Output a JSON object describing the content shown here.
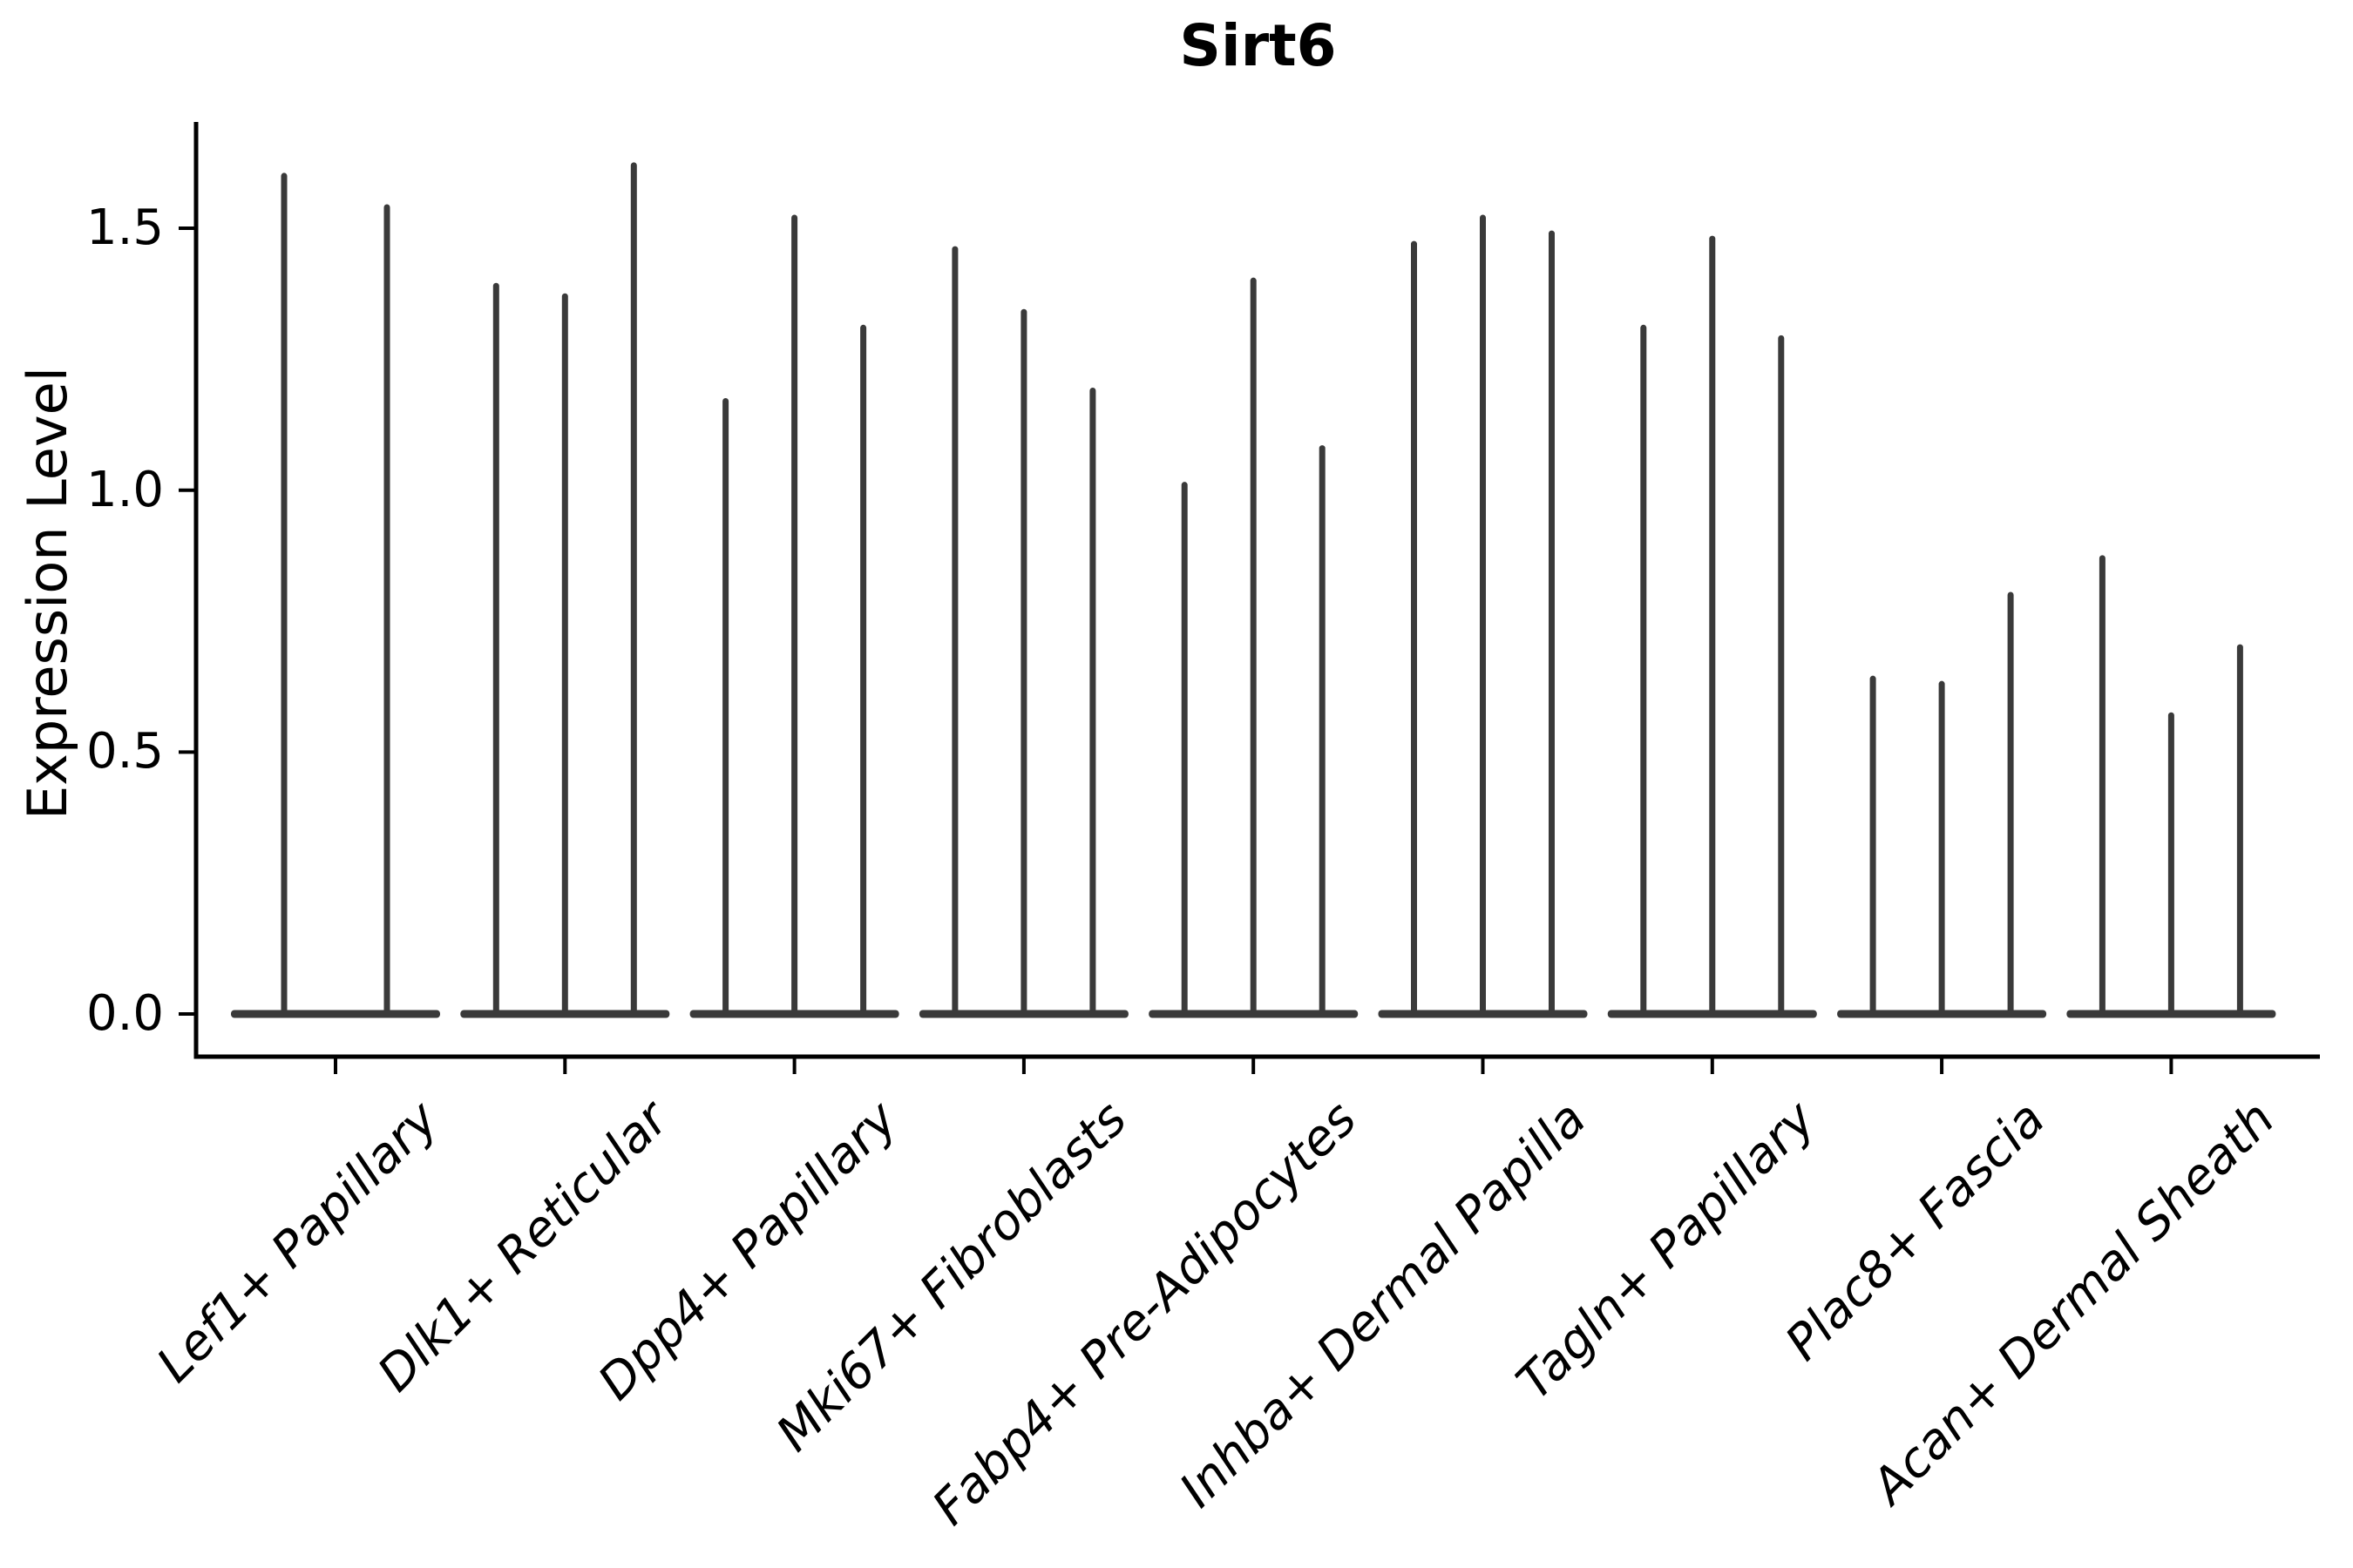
{
  "figure": {
    "title": "Sirt6",
    "y_axis_label": "Expression Level"
  },
  "y_tick_labels": [
    "0.0",
    "0.5",
    "1.0",
    "1.5"
  ],
  "colors": {
    "violin": "#3a3a3a",
    "axis": "#000000",
    "text": "#000000",
    "background": "#ffffff"
  },
  "chart_data": {
    "type": "violin",
    "title": "Sirt6",
    "xlabel": "",
    "ylabel": "Expression Level",
    "ylim": [
      -0.08,
      1.7
    ],
    "yticks": [
      0.0,
      0.5,
      1.0,
      1.5
    ],
    "grid": false,
    "legend_position": "none",
    "x_label_rotation_deg": 45,
    "description": "Needle-thin violins: density concentrated at 0 (flat base per category) with a narrow spike rising to each violin's maximum expression value.",
    "categories": [
      "Lef1+ Papillary",
      "Dlk1+ Reticular",
      "Dpp4+ Papillary",
      "Mki67+ Fibroblasts",
      "Fabp4+ Pre-Adipocytes",
      "Inhba+ Dermal Papilla",
      "Tagln+ Papillary",
      "Plac8+ Fascia",
      "Acan+ Dermal Sheath"
    ],
    "series": [
      {
        "category": "Lef1+ Papillary",
        "violin_maxima": [
          1.6,
          1.54
        ]
      },
      {
        "category": "Dlk1+ Reticular",
        "violin_maxima": [
          1.39,
          1.37,
          1.62
        ]
      },
      {
        "category": "Dpp4+ Papillary",
        "violin_maxima": [
          1.17,
          1.52,
          1.31
        ]
      },
      {
        "category": "Mki67+ Fibroblasts",
        "violin_maxima": [
          1.46,
          1.34,
          1.19
        ]
      },
      {
        "category": "Fabp4+ Pre-Adipocytes",
        "violin_maxima": [
          1.01,
          1.4,
          1.08
        ]
      },
      {
        "category": "Inhba+ Dermal Papilla",
        "violin_maxima": [
          1.47,
          1.52,
          1.49
        ]
      },
      {
        "category": "Tagln+ Papillary",
        "violin_maxima": [
          1.31,
          1.48,
          1.29
        ]
      },
      {
        "category": "Plac8+ Fascia",
        "violin_maxima": [
          0.64,
          0.63,
          0.8
        ]
      },
      {
        "category": "Acan+ Dermal Sheath",
        "violin_maxima": [
          0.87,
          0.57,
          0.7
        ]
      }
    ]
  }
}
